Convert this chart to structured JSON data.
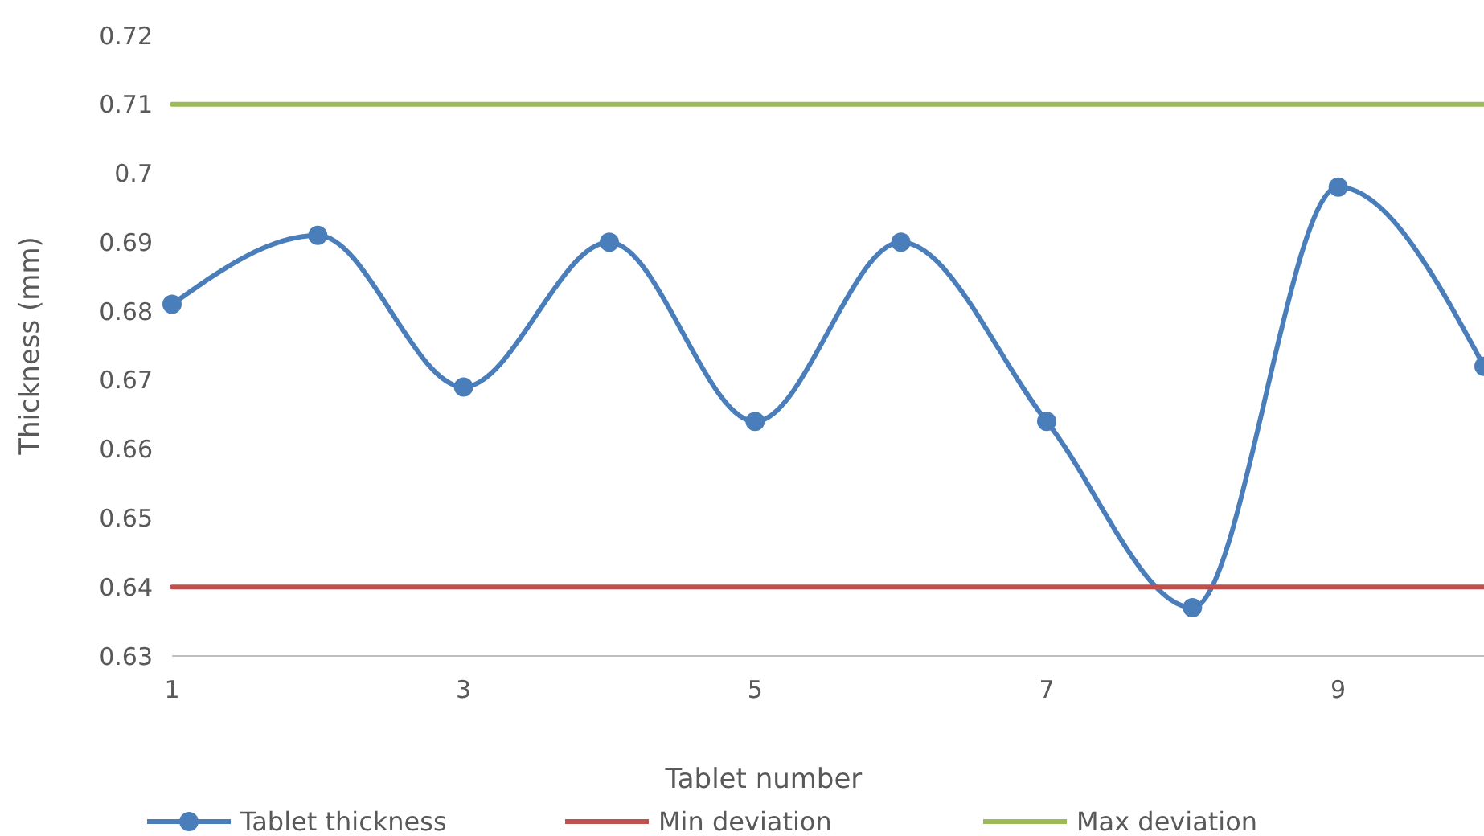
{
  "chart_data": {
    "type": "line",
    "xlabel": "Tablet number",
    "ylabel": "Thickness (mm)",
    "xlim": [
      1,
      10
    ],
    "xticks": [
      1,
      3,
      5,
      7,
      9
    ],
    "ylim": [
      0.63,
      0.72
    ],
    "yticks": [
      0.63,
      0.64,
      0.65,
      0.66,
      0.67,
      0.68,
      0.69,
      0.7,
      0.71,
      0.72
    ],
    "legend": "bottom",
    "grid": false,
    "series": [
      {
        "name": "Tablet thickness",
        "color": "#4a7ebb",
        "marker": "circle",
        "x": [
          1,
          2,
          3,
          4,
          5,
          6,
          7,
          8,
          9,
          10
        ],
        "values": [
          0.681,
          0.691,
          0.669,
          0.69,
          0.664,
          0.69,
          0.664,
          0.637,
          0.698,
          0.672
        ]
      },
      {
        "name": "Min deviation",
        "color": "#c0504d",
        "marker": "none",
        "x": [
          1,
          10
        ],
        "values": [
          0.64,
          0.64
        ]
      },
      {
        "name": "Max deviation",
        "color": "#9bbb59",
        "marker": "none",
        "x": [
          1,
          10
        ],
        "values": [
          0.71,
          0.71
        ]
      }
    ]
  }
}
